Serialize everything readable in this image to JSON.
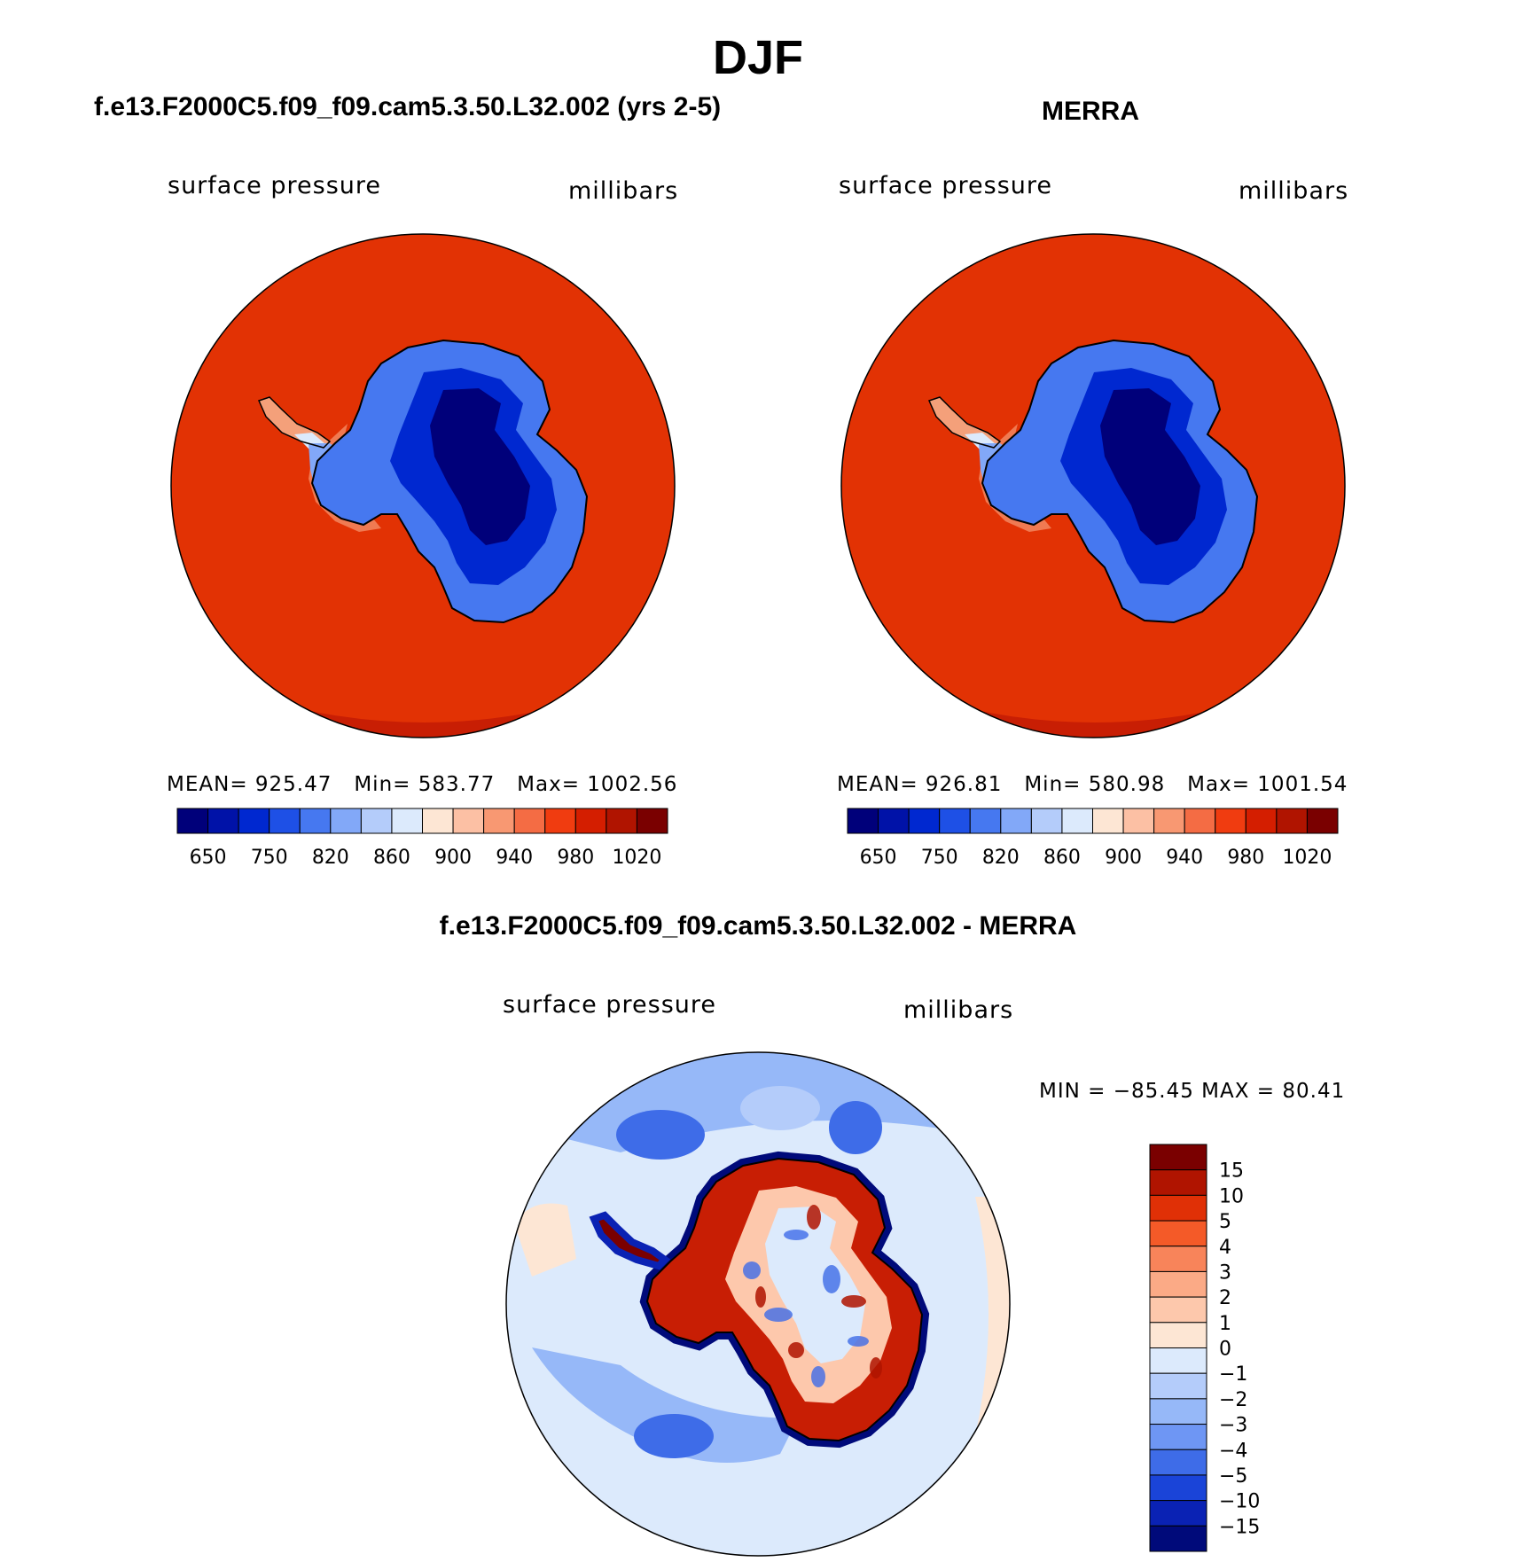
{
  "figure": {
    "title": "DJF",
    "panels": [
      {
        "title": "f.e13.F2000C5.f09_f09.cam5.3.50.L32.002 (yrs 2-5)",
        "variable_label": "surface pressure",
        "units_label": "millibars",
        "stats": {
          "mean_label": "MEAN=",
          "mean": "925.47",
          "min_label": "Min=",
          "min": "583.77",
          "max_label": "Max=",
          "max": "1002.56"
        }
      },
      {
        "title": "MERRA",
        "variable_label": "surface pressure",
        "units_label": "millibars",
        "stats": {
          "mean_label": "MEAN=",
          "mean": "926.81",
          "min_label": "Min=",
          "min": "580.98",
          "max_label": "Max=",
          "max": "1001.54"
        }
      },
      {
        "title": "f.e13.F2000C5.f09_f09.cam5.3.50.L32.002 - MERRA",
        "variable_label": "surface pressure",
        "units_label": "millibars",
        "minmax_text": "MIN = −85.45 MAX =   80.41"
      }
    ]
  },
  "chart_data": [
    {
      "type": "heatmap",
      "projection": "south polar stereographic",
      "title": "f.e13.F2000C5.f09_f09.cam5.3.50.L32.002 (yrs 2-5)",
      "field": "surface pressure",
      "units": "millibars",
      "mean": 925.47,
      "min": 583.77,
      "max": 1002.56,
      "colorbar": {
        "tick_labels": [
          "650",
          "750",
          "820",
          "860",
          "900",
          "940",
          "980",
          "1020"
        ],
        "colors": [
          "#00007a",
          "#0012a8",
          "#0028d0",
          "#1e50e6",
          "#4678f0",
          "#82a8f8",
          "#b4ccfa",
          "#dceafc",
          "#fde6d4",
          "#fcc0a4",
          "#f89872",
          "#f46c44",
          "#f03c10",
          "#d41e00",
          "#b01400",
          "#7a0000"
        ]
      }
    },
    {
      "type": "heatmap",
      "projection": "south polar stereographic",
      "title": "MERRA",
      "field": "surface pressure",
      "units": "millibars",
      "mean": 926.81,
      "min": 580.98,
      "max": 1001.54,
      "colorbar": {
        "tick_labels": [
          "650",
          "750",
          "820",
          "860",
          "900",
          "940",
          "980",
          "1020"
        ],
        "colors": [
          "#00007a",
          "#0012a8",
          "#0028d0",
          "#1e50e6",
          "#4678f0",
          "#82a8f8",
          "#b4ccfa",
          "#dceafc",
          "#fde6d4",
          "#fcc0a4",
          "#f89872",
          "#f46c44",
          "#f03c10",
          "#d41e00",
          "#b01400",
          "#7a0000"
        ]
      }
    },
    {
      "type": "heatmap",
      "projection": "south polar stereographic",
      "title": "f.e13.F2000C5.f09_f09.cam5.3.50.L32.002 - MERRA",
      "field": "surface pressure",
      "units": "millibars",
      "min": -85.45,
      "max": 80.41,
      "colorbar": {
        "tick_labels": [
          "15",
          "10",
          "5",
          "4",
          "3",
          "2",
          "1",
          "0",
          "−1",
          "−2",
          "−3",
          "−4",
          "−5",
          "−10",
          "−15"
        ],
        "colors": [
          "#7a0000",
          "#b01400",
          "#e03006",
          "#f45a28",
          "#f8845a",
          "#fbaa86",
          "#fdc8ac",
          "#fde6d4",
          "#dceafc",
          "#b4ccfa",
          "#96b8f8",
          "#6e96f4",
          "#3e6ce8",
          "#1a44d8",
          "#0a22b4",
          "#000a7a"
        ]
      }
    }
  ]
}
